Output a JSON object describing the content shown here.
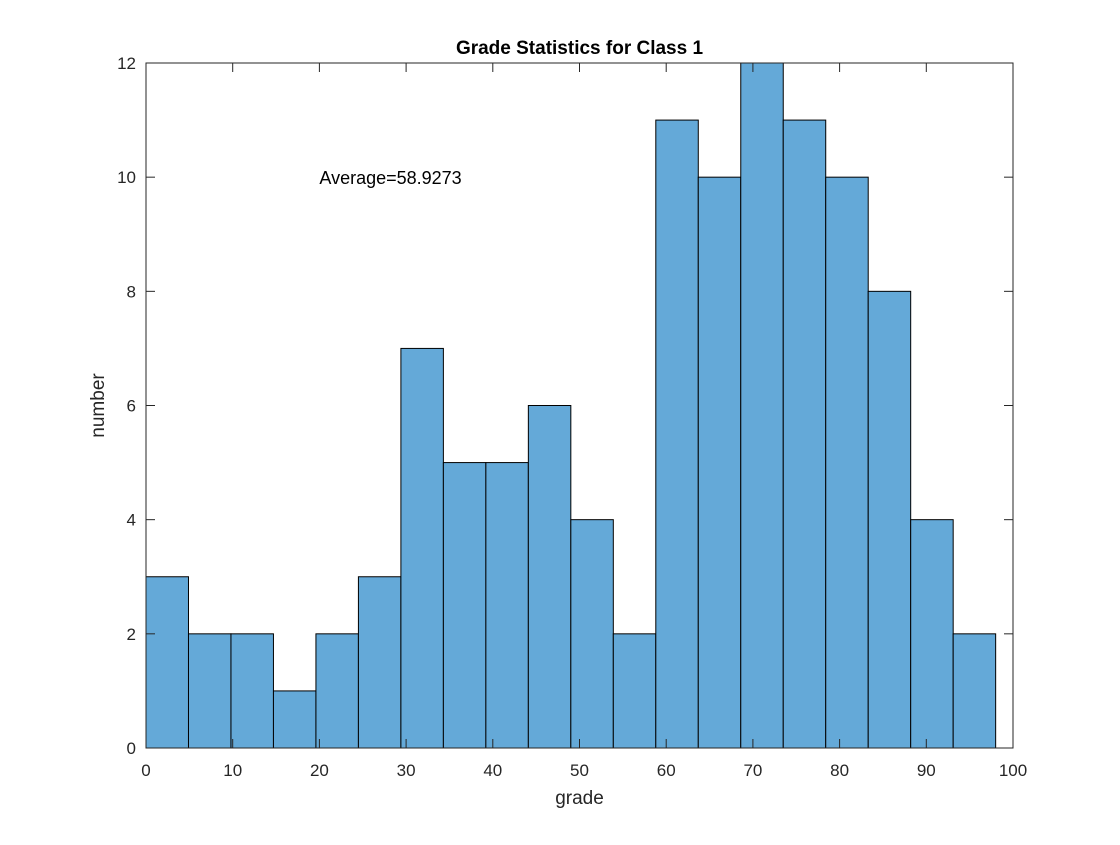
{
  "chart_data": {
    "type": "bar",
    "title": "Grade Statistics for Class 1",
    "xlabel": "grade",
    "ylabel": "number",
    "xlim": [
      0,
      100
    ],
    "ylim": [
      0,
      12
    ],
    "xticks": [
      0,
      10,
      20,
      30,
      40,
      50,
      60,
      70,
      80,
      90,
      100
    ],
    "yticks": [
      0,
      2,
      4,
      6,
      8,
      10,
      12
    ],
    "bin_edges": [
      0,
      4.9,
      9.8,
      14.7,
      19.6,
      24.5,
      29.4,
      34.3,
      39.2,
      44.1,
      49,
      53.9,
      58.8,
      63.7,
      68.6,
      73.5,
      78.4,
      83.3,
      88.2,
      93.1,
      98
    ],
    "values": [
      3,
      2,
      2,
      1,
      2,
      3,
      7,
      5,
      5,
      6,
      4,
      2,
      11,
      10,
      12,
      11,
      10,
      8,
      4,
      2
    ],
    "bar_color": "#64A9D8",
    "bar_edge_color": "#000000",
    "grid": false,
    "annotation": {
      "text": "Average=58.9273",
      "x": 20,
      "y": 10
    }
  }
}
